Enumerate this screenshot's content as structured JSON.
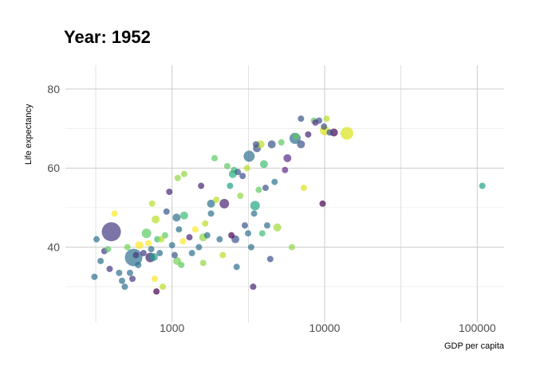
{
  "chart_data": {
    "type": "scatter",
    "title": "Year: 1952",
    "xlabel": "GDP per capita",
    "ylabel": "Life expectancy",
    "x_scale": "log",
    "xlim": [
      200,
      150000
    ],
    "ylim": [
      21,
      86
    ],
    "x_ticks": [
      1000,
      10000,
      100000
    ],
    "x_tick_labels": [
      "1000",
      "10000",
      "100000"
    ],
    "y_ticks": [
      40,
      60,
      80
    ],
    "y_tick_labels": [
      "40",
      "60",
      "80"
    ],
    "grid": true,
    "legend": "none",
    "points": [
      {
        "x": 400,
        "y": 43.9,
        "size": 12,
        "color": "#453781"
      },
      {
        "x": 560,
        "y": 37.4,
        "size": 11,
        "color": "#2c728e"
      },
      {
        "x": 14000,
        "y": 68.8,
        "size": 8,
        "color": "#dce319"
      },
      {
        "x": 3200,
        "y": 63.0,
        "size": 7,
        "color": "#2d708e"
      },
      {
        "x": 6400,
        "y": 67.5,
        "size": 7,
        "color": "#2d708e"
      },
      {
        "x": 720,
        "y": 37.4,
        "size": 6,
        "color": "#3b1e6c"
      },
      {
        "x": 680,
        "y": 43.5,
        "size": 6,
        "color": "#5ec962"
      },
      {
        "x": 2200,
        "y": 51.0,
        "size": 6,
        "color": "#482475"
      },
      {
        "x": 3500,
        "y": 50.5,
        "size": 6,
        "color": "#22a884"
      },
      {
        "x": 10000,
        "y": 69.5,
        "size": 6,
        "color": "#dce319"
      },
      {
        "x": 11500,
        "y": 69.0,
        "size": 5,
        "color": "#440154"
      },
      {
        "x": 2600,
        "y": 42.0,
        "size": 5,
        "color": "#3b528b"
      },
      {
        "x": 1600,
        "y": 42.5,
        "size": 5,
        "color": "#8fd744"
      },
      {
        "x": 610,
        "y": 40.5,
        "size": 5,
        "color": "#fde725"
      },
      {
        "x": 760,
        "y": 37.5,
        "size": 5,
        "color": "#1fa187"
      },
      {
        "x": 1080,
        "y": 36.5,
        "size": 5,
        "color": "#73d055"
      },
      {
        "x": 4900,
        "y": 45.0,
        "size": 5,
        "color": "#a0da39"
      },
      {
        "x": 4000,
        "y": 61.0,
        "size": 5,
        "color": "#3dbc74"
      },
      {
        "x": 2500,
        "y": 58.5,
        "size": 5,
        "color": "#28ae80"
      },
      {
        "x": 1800,
        "y": 51.0,
        "size": 5,
        "color": "#2d708e"
      },
      {
        "x": 1200,
        "y": 48.0,
        "size": 5,
        "color": "#3dbc74"
      },
      {
        "x": 780,
        "y": 47.0,
        "size": 5,
        "color": "#b8de29"
      },
      {
        "x": 1070,
        "y": 47.5,
        "size": 5,
        "color": "#2d708e"
      },
      {
        "x": 3600,
        "y": 65.0,
        "size": 5,
        "color": "#3b528b"
      },
      {
        "x": 4500,
        "y": 66.0,
        "size": 5,
        "color": "#3b528b"
      },
      {
        "x": 7000,
        "y": 66.0,
        "size": 5,
        "color": "#3b528b"
      },
      {
        "x": 5700,
        "y": 62.5,
        "size": 5,
        "color": "#5b2a86"
      },
      {
        "x": 3800,
        "y": 66.0,
        "size": 5,
        "color": "#b8de29"
      },
      {
        "x": 320,
        "y": 42.0,
        "size": 4,
        "color": "#2d708e"
      },
      {
        "x": 310,
        "y": 32.5,
        "size": 4,
        "color": "#2d708e"
      },
      {
        "x": 340,
        "y": 36.5,
        "size": 4,
        "color": "#2d708e"
      },
      {
        "x": 360,
        "y": 39.0,
        "size": 4,
        "color": "#453781"
      },
      {
        "x": 380,
        "y": 39.5,
        "size": 4,
        "color": "#5ec962"
      },
      {
        "x": 390,
        "y": 34.5,
        "size": 4,
        "color": "#453781"
      },
      {
        "x": 420,
        "y": 48.5,
        "size": 4,
        "color": "#fde725"
      },
      {
        "x": 450,
        "y": 33.5,
        "size": 4,
        "color": "#2d708e"
      },
      {
        "x": 470,
        "y": 31.5,
        "size": 4,
        "color": "#2d708e"
      },
      {
        "x": 490,
        "y": 30.0,
        "size": 4,
        "color": "#2d708e"
      },
      {
        "x": 510,
        "y": 40.0,
        "size": 4,
        "color": "#73d055"
      },
      {
        "x": 530,
        "y": 33.5,
        "size": 4,
        "color": "#2d708e"
      },
      {
        "x": 550,
        "y": 32.0,
        "size": 4,
        "color": "#453781"
      },
      {
        "x": 580,
        "y": 38.0,
        "size": 4,
        "color": "#453781"
      },
      {
        "x": 600,
        "y": 35.5,
        "size": 4,
        "color": "#2d708e"
      },
      {
        "x": 650,
        "y": 38.5,
        "size": 4,
        "color": "#453781"
      },
      {
        "x": 700,
        "y": 41.0,
        "size": 4,
        "color": "#fde725"
      },
      {
        "x": 730,
        "y": 39.5,
        "size": 4,
        "color": "#2d708e"
      },
      {
        "x": 740,
        "y": 51.0,
        "size": 4,
        "color": "#b8de29"
      },
      {
        "x": 770,
        "y": 32.0,
        "size": 4,
        "color": "#fde725"
      },
      {
        "x": 790,
        "y": 28.8,
        "size": 4,
        "color": "#440154"
      },
      {
        "x": 800,
        "y": 42.0,
        "size": 4,
        "color": "#3dbc74"
      },
      {
        "x": 830,
        "y": 38.5,
        "size": 4,
        "color": "#2d708e"
      },
      {
        "x": 850,
        "y": 42.0,
        "size": 4,
        "color": "#b8de29"
      },
      {
        "x": 870,
        "y": 30.0,
        "size": 4,
        "color": "#b8de29"
      },
      {
        "x": 900,
        "y": 43.0,
        "size": 4,
        "color": "#5ec962"
      },
      {
        "x": 920,
        "y": 49.0,
        "size": 4,
        "color": "#3b528b"
      },
      {
        "x": 960,
        "y": 54.0,
        "size": 4,
        "color": "#482475"
      },
      {
        "x": 1000,
        "y": 40.5,
        "size": 4,
        "color": "#2d708e"
      },
      {
        "x": 1040,
        "y": 38.0,
        "size": 4,
        "color": "#3b528b"
      },
      {
        "x": 1090,
        "y": 57.5,
        "size": 4,
        "color": "#8fd744"
      },
      {
        "x": 1110,
        "y": 44.5,
        "size": 4,
        "color": "#2d708e"
      },
      {
        "x": 1150,
        "y": 35.5,
        "size": 4,
        "color": "#5ec962"
      },
      {
        "x": 1180,
        "y": 41.5,
        "size": 4,
        "color": "#fde725"
      },
      {
        "x": 1200,
        "y": 58.5,
        "size": 4,
        "color": "#8fd744"
      },
      {
        "x": 1300,
        "y": 42.5,
        "size": 4,
        "color": "#482475"
      },
      {
        "x": 1350,
        "y": 38.5,
        "size": 4,
        "color": "#2d708e"
      },
      {
        "x": 1420,
        "y": 44.5,
        "size": 4,
        "color": "#fde725"
      },
      {
        "x": 1500,
        "y": 40.0,
        "size": 4,
        "color": "#2d708e"
      },
      {
        "x": 1550,
        "y": 55.5,
        "size": 4,
        "color": "#482475"
      },
      {
        "x": 1600,
        "y": 36.0,
        "size": 4,
        "color": "#8fd744"
      },
      {
        "x": 1650,
        "y": 46.0,
        "size": 4,
        "color": "#b8de29"
      },
      {
        "x": 1700,
        "y": 43.0,
        "size": 4,
        "color": "#2d708e"
      },
      {
        "x": 1800,
        "y": 48.5,
        "size": 4,
        "color": "#2d708e"
      },
      {
        "x": 1900,
        "y": 62.5,
        "size": 4,
        "color": "#5ec962"
      },
      {
        "x": 1950,
        "y": 52.0,
        "size": 4,
        "color": "#b8de29"
      },
      {
        "x": 2050,
        "y": 42.0,
        "size": 4,
        "color": "#2d708e"
      },
      {
        "x": 2150,
        "y": 38.0,
        "size": 4,
        "color": "#b8de29"
      },
      {
        "x": 2300,
        "y": 60.5,
        "size": 4,
        "color": "#5ec962"
      },
      {
        "x": 2400,
        "y": 55.5,
        "size": 4,
        "color": "#1fa187"
      },
      {
        "x": 2450,
        "y": 43.0,
        "size": 4,
        "color": "#440154"
      },
      {
        "x": 2550,
        "y": 59.5,
        "size": 4,
        "color": "#3dbc74"
      },
      {
        "x": 2650,
        "y": 35.0,
        "size": 4,
        "color": "#2d708e"
      },
      {
        "x": 2700,
        "y": 59.0,
        "size": 4,
        "color": "#3b528b"
      },
      {
        "x": 2800,
        "y": 53.0,
        "size": 4,
        "color": "#8fd744"
      },
      {
        "x": 2900,
        "y": 58.0,
        "size": 4,
        "color": "#3b528b"
      },
      {
        "x": 3000,
        "y": 45.5,
        "size": 4,
        "color": "#3b528b"
      },
      {
        "x": 3100,
        "y": 60.0,
        "size": 4,
        "color": "#b8de29"
      },
      {
        "x": 3150,
        "y": 43.5,
        "size": 4,
        "color": "#2d708e"
      },
      {
        "x": 3300,
        "y": 40.0,
        "size": 4,
        "color": "#2d708e"
      },
      {
        "x": 3400,
        "y": 30.0,
        "size": 4,
        "color": "#482475"
      },
      {
        "x": 3450,
        "y": 48.5,
        "size": 4,
        "color": "#2d708e"
      },
      {
        "x": 3550,
        "y": 66.0,
        "size": 4,
        "color": "#3b528b"
      },
      {
        "x": 3700,
        "y": 54.5,
        "size": 4,
        "color": "#5ec962"
      },
      {
        "x": 3900,
        "y": 43.5,
        "size": 4,
        "color": "#3dbc74"
      },
      {
        "x": 4100,
        "y": 55.0,
        "size": 4,
        "color": "#3b528b"
      },
      {
        "x": 4200,
        "y": 45.5,
        "size": 4,
        "color": "#2d708e"
      },
      {
        "x": 4400,
        "y": 37.0,
        "size": 4,
        "color": "#3b528b"
      },
      {
        "x": 4700,
        "y": 56.5,
        "size": 4,
        "color": "#2d708e"
      },
      {
        "x": 5200,
        "y": 66.5,
        "size": 4,
        "color": "#5ec962"
      },
      {
        "x": 5500,
        "y": 59.5,
        "size": 4,
        "color": "#5b2a86"
      },
      {
        "x": 6100,
        "y": 40.0,
        "size": 4,
        "color": "#8fd744"
      },
      {
        "x": 6500,
        "y": 68.0,
        "size": 4,
        "color": "#5ec962"
      },
      {
        "x": 7300,
        "y": 55.0,
        "size": 4,
        "color": "#dce319"
      },
      {
        "x": 7800,
        "y": 68.5,
        "size": 4,
        "color": "#482475"
      },
      {
        "x": 8500,
        "y": 72.0,
        "size": 4,
        "color": "#5ec962"
      },
      {
        "x": 8700,
        "y": 71.5,
        "size": 4,
        "color": "#5b2a86"
      },
      {
        "x": 9200,
        "y": 72.0,
        "size": 4,
        "color": "#3b528b"
      },
      {
        "x": 9700,
        "y": 51.0,
        "size": 4,
        "color": "#440154"
      },
      {
        "x": 9900,
        "y": 70.5,
        "size": 4,
        "color": "#3b528b"
      },
      {
        "x": 10300,
        "y": 72.5,
        "size": 4,
        "color": "#b8de29"
      },
      {
        "x": 10800,
        "y": 69.0,
        "size": 4,
        "color": "#3b528b"
      },
      {
        "x": 7000,
        "y": 72.5,
        "size": 4,
        "color": "#3b528b"
      },
      {
        "x": 108000,
        "y": 55.5,
        "size": 4,
        "color": "#1fa187"
      }
    ]
  }
}
